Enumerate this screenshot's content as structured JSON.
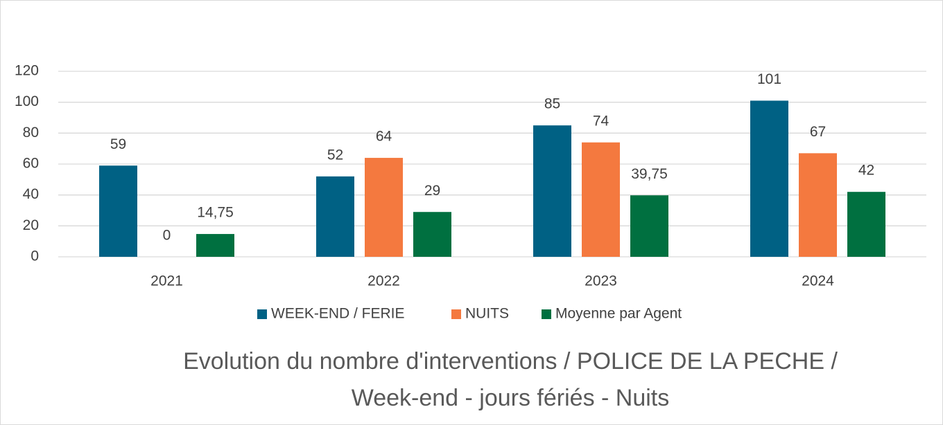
{
  "chart_data": {
    "type": "bar",
    "title": "Evolution du nombre d'interventions / POLICE DE LA PECHE / Week-end - jours fériés - Nuits",
    "categories": [
      "2021",
      "2022",
      "2023",
      "2024"
    ],
    "series": [
      {
        "name": "WEEK-END / FERIE",
        "color": "#006184",
        "values": [
          59,
          52,
          85,
          101
        ]
      },
      {
        "name": "NUITS",
        "color": "#f4793f",
        "values": [
          0,
          64,
          74,
          67
        ]
      },
      {
        "name": "Moyenne par Agent",
        "color": "#007040",
        "values": [
          14.75,
          29,
          39.75,
          42
        ],
        "value_labels": [
          "14,75",
          "29",
          "39,75",
          "42"
        ]
      }
    ],
    "ylim": [
      0,
      120
    ],
    "yticks": [
      0,
      20,
      40,
      60,
      80,
      100,
      120
    ],
    "grid": true,
    "legend": "bottom"
  }
}
